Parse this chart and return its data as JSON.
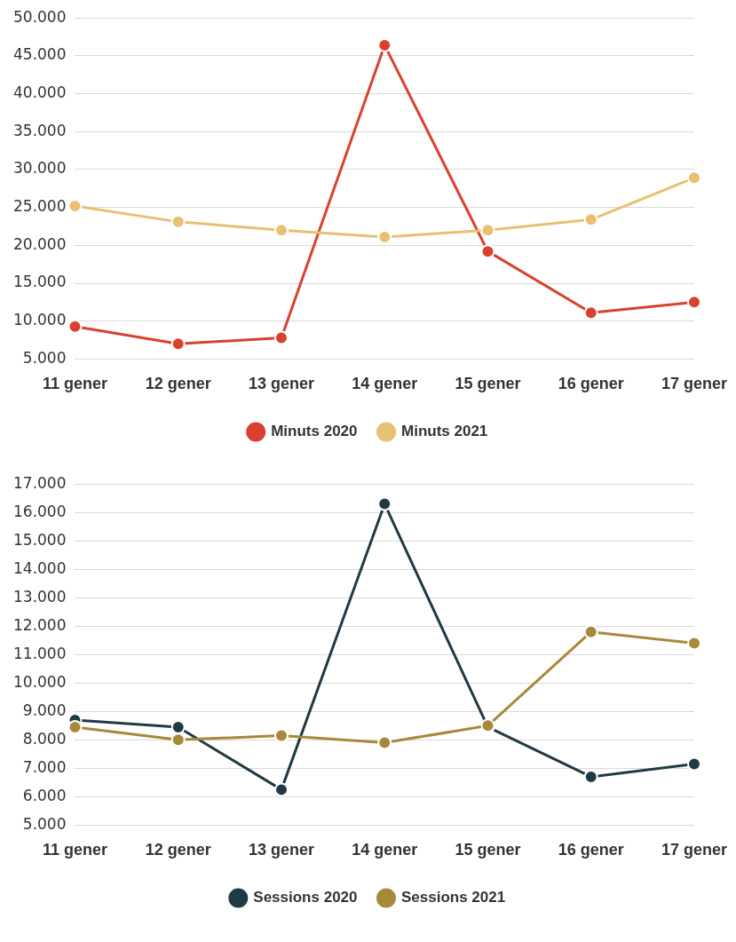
{
  "chart_data": [
    {
      "type": "line",
      "categories": [
        "11 gener",
        "12 gener",
        "13 gener",
        "14 gener",
        "15 gener",
        "16 gener",
        "17 gener"
      ],
      "series": [
        {
          "name": "Minuts 2020",
          "color": "#d9412f",
          "values": [
            9300,
            7000,
            7800,
            46400,
            19200,
            11100,
            12500
          ]
        },
        {
          "name": "Minuts 2021",
          "color": "#e8c072",
          "values": [
            25200,
            23100,
            22000,
            21100,
            22000,
            23400,
            28900
          ]
        }
      ],
      "ylim": [
        5000,
        50000
      ],
      "yticks": [
        {
          "value": 5000,
          "label": "5.000"
        },
        {
          "value": 10000,
          "label": "10.000"
        },
        {
          "value": 15000,
          "label": "15.000"
        },
        {
          "value": 20000,
          "label": "20.000"
        },
        {
          "value": 25000,
          "label": "25.000"
        },
        {
          "value": 30000,
          "label": "30.000"
        },
        {
          "value": 35000,
          "label": "35.000"
        },
        {
          "value": 40000,
          "label": "40.000"
        },
        {
          "value": 45000,
          "label": "45.000"
        },
        {
          "value": 50000,
          "label": "50.000"
        }
      ],
      "grid": "y",
      "legend": "bottom",
      "marker": "circle",
      "line_style": "solid"
    },
    {
      "type": "line",
      "categories": [
        "11 gener",
        "12 gener",
        "13 gener",
        "14 gener",
        "15 gener",
        "16 gener",
        "17 gener"
      ],
      "series": [
        {
          "name": "Sessions 2020",
          "color": "#1f3a44",
          "values": [
            8700,
            8450,
            6250,
            16300,
            8450,
            6700,
            7150
          ]
        },
        {
          "name": "Sessions 2021",
          "color": "#a8883a",
          "values": [
            8450,
            8000,
            8150,
            7900,
            8500,
            11800,
            11400
          ]
        }
      ],
      "ylim": [
        5000,
        17000
      ],
      "yticks": [
        {
          "value": 5000,
          "label": "5.000"
        },
        {
          "value": 6000,
          "label": "6.000"
        },
        {
          "value": 7000,
          "label": "7.000"
        },
        {
          "value": 8000,
          "label": "8.000"
        },
        {
          "value": 9000,
          "label": "9.000"
        },
        {
          "value": 10000,
          "label": "10.000"
        },
        {
          "value": 11000,
          "label": "11.000"
        },
        {
          "value": 12000,
          "label": "12.000"
        },
        {
          "value": 13000,
          "label": "13.000"
        },
        {
          "value": 14000,
          "label": "14.000"
        },
        {
          "value": 15000,
          "label": "15.000"
        },
        {
          "value": 16000,
          "label": "16.000"
        },
        {
          "value": 17000,
          "label": "17.000"
        }
      ],
      "grid": "y",
      "legend": "bottom",
      "marker": "circle",
      "line_style": "solid"
    }
  ]
}
